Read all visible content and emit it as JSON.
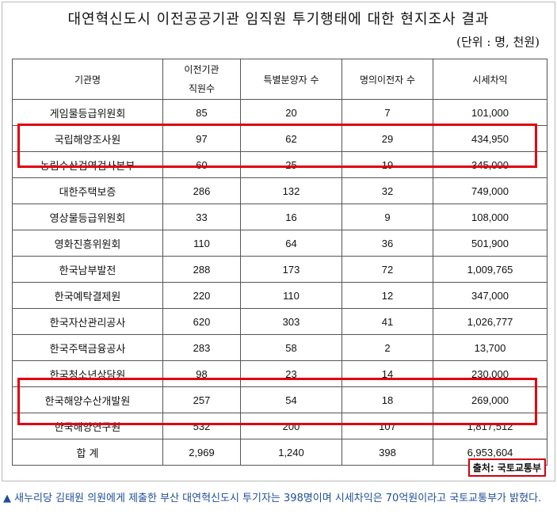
{
  "title": "대연혁신도시 이전공공기관 임직원 투기행태에 대한 현지조사 결과",
  "unit": "(단위 : 명, 천원)",
  "table": {
    "headers": {
      "agency_name": "기관명",
      "relocated_staff_line1": "이전기관",
      "relocated_staff_line2": "직원수",
      "special_buyers": "특별분양자 수",
      "name_transfers": "명의이전자 수",
      "market_gain": "시세차익"
    },
    "rows": [
      {
        "name": "게임물등급위원회",
        "staff": "85",
        "buyers": "20",
        "transfers": "7",
        "gain": "101,000"
      },
      {
        "name": "국립해양조사원",
        "staff": "97",
        "buyers": "62",
        "transfers": "29",
        "gain": "434,950"
      },
      {
        "name": "농림수산검역검사본부",
        "staff": "60",
        "buyers": "25",
        "transfers": "19",
        "gain": "345,000"
      },
      {
        "name": "대한주택보증",
        "staff": "286",
        "buyers": "132",
        "transfers": "32",
        "gain": "749,000"
      },
      {
        "name": "영상물등급위원회",
        "staff": "33",
        "buyers": "16",
        "transfers": "9",
        "gain": "108,000"
      },
      {
        "name": "영화진흥위원회",
        "staff": "110",
        "buyers": "64",
        "transfers": "36",
        "gain": "501,900"
      },
      {
        "name": "한국남부발전",
        "staff": "288",
        "buyers": "173",
        "transfers": "72",
        "gain": "1,009,765"
      },
      {
        "name": "한국예탁결제원",
        "staff": "220",
        "buyers": "110",
        "transfers": "12",
        "gain": "347,000"
      },
      {
        "name": "한국자산관리공사",
        "staff": "620",
        "buyers": "303",
        "transfers": "41",
        "gain": "1,026,777"
      },
      {
        "name": "한국주택금융공사",
        "staff": "283",
        "buyers": "58",
        "transfers": "2",
        "gain": "13,700"
      },
      {
        "name": "한국청소년상담원",
        "staff": "98",
        "buyers": "23",
        "transfers": "14",
        "gain": "230,000"
      },
      {
        "name": "한국해양수산개발원",
        "staff": "257",
        "buyers": "54",
        "transfers": "18",
        "gain": "269,000"
      },
      {
        "name": "한국해양연구원",
        "staff": "532",
        "buyers": "200",
        "transfers": "107",
        "gain": "1,817,512"
      }
    ],
    "total": {
      "name": "합 계",
      "staff": "2,969",
      "buyers": "1,240",
      "transfers": "398",
      "gain": "6,953,604"
    }
  },
  "source": "출처: 국토교통부",
  "caption": {
    "marker": "▲",
    "text": "새누리당 김태원 의원에게 제출한 부산 대연혁신도시 투기자는 398명이며 시세차익은 70억원이라고 국토교통부가 밝혔다."
  },
  "colors": {
    "highlight": "#e00010",
    "caption": "#1f4e9a"
  }
}
